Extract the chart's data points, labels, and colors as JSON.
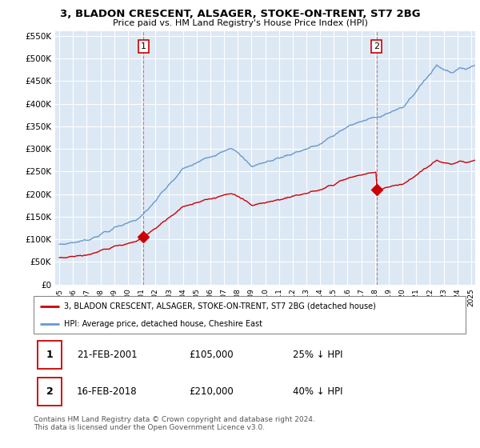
{
  "title": "3, BLADON CRESCENT, ALSAGER, STOKE-ON-TRENT, ST7 2BG",
  "subtitle": "Price paid vs. HM Land Registry's House Price Index (HPI)",
  "ylim": [
    0,
    560000
  ],
  "yticks": [
    0,
    50000,
    100000,
    150000,
    200000,
    250000,
    300000,
    350000,
    400000,
    450000,
    500000,
    550000
  ],
  "ytick_labels": [
    "£0",
    "£50K",
    "£100K",
    "£150K",
    "£200K",
    "£250K",
    "£300K",
    "£350K",
    "£400K",
    "£450K",
    "£500K",
    "£550K"
  ],
  "xlim_start": 1994.7,
  "xlim_end": 2025.3,
  "sale1_x": 2001.13,
  "sale1_y": 105000,
  "sale2_x": 2018.12,
  "sale2_y": 210000,
  "sale1_label": "21-FEB-2001",
  "sale1_price": "£105,000",
  "sale1_hpi": "25% ↓ HPI",
  "sale2_label": "16-FEB-2018",
  "sale2_price": "£210,000",
  "sale2_hpi": "40% ↓ HPI",
  "legend_line1": "3, BLADON CRESCENT, ALSAGER, STOKE-ON-TRENT, ST7 2BG (detached house)",
  "legend_line2": "HPI: Average price, detached house, Cheshire East",
  "footnote": "Contains HM Land Registry data © Crown copyright and database right 2024.\nThis data is licensed under the Open Government Licence v3.0.",
  "line_red": "#cc0000",
  "line_blue": "#6699cc",
  "bg_color": "#ffffff",
  "chart_bg": "#dde8f5",
  "grid_color": "#ffffff"
}
